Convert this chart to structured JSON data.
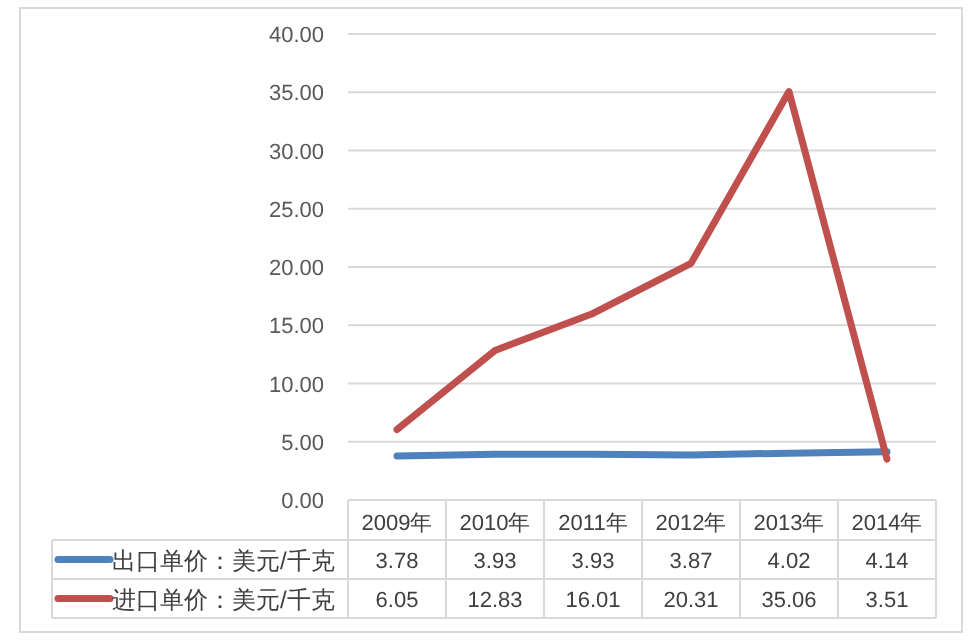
{
  "chart_data": {
    "type": "line",
    "categories": [
      "2009年",
      "2010年",
      "2011年",
      "2012年",
      "2013年",
      "2014年"
    ],
    "series": [
      {
        "name": "出口单价：美元/千克",
        "color": "#4f81bd",
        "values": [
          3.78,
          3.93,
          3.93,
          3.87,
          4.02,
          4.14
        ]
      },
      {
        "name": "进口单价：美元/千克",
        "color": "#c0504d",
        "values": [
          6.05,
          12.83,
          16.01,
          20.31,
          35.06,
          3.51
        ]
      }
    ],
    "ylim": [
      0,
      40
    ],
    "yticks": [
      {
        "value": 0,
        "label": "0.00"
      },
      {
        "value": 5,
        "label": "5.00"
      },
      {
        "value": 10,
        "label": "10.00"
      },
      {
        "value": 15,
        "label": "15.00"
      },
      {
        "value": 20,
        "label": "20.00"
      },
      {
        "value": 25,
        "label": "25.00"
      },
      {
        "value": 30,
        "label": "30.00"
      },
      {
        "value": 35,
        "label": "35.00"
      },
      {
        "value": 40,
        "label": "40.00"
      }
    ],
    "grid": "y",
    "data_labels": true,
    "legend": "bottom",
    "marker": "none",
    "line_style": "solid"
  }
}
